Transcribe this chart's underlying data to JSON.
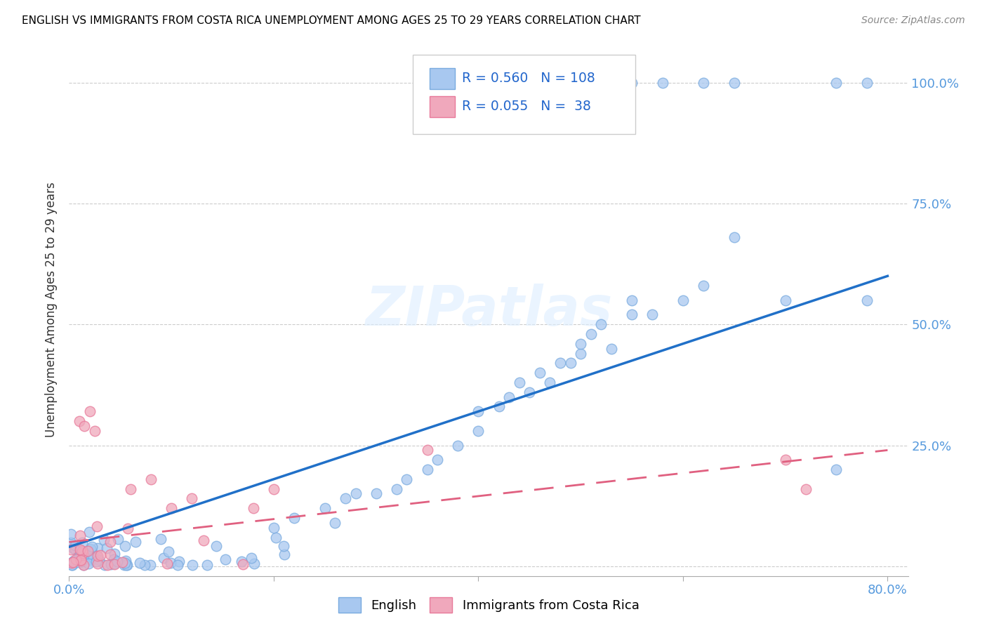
{
  "title": "ENGLISH VS IMMIGRANTS FROM COSTA RICA UNEMPLOYMENT AMONG AGES 25 TO 29 YEARS CORRELATION CHART",
  "source": "Source: ZipAtlas.com",
  "ylabel": "Unemployment Among Ages 25 to 29 years",
  "xlim": [
    0.0,
    0.82
  ],
  "ylim": [
    -0.02,
    1.08
  ],
  "x_ticks": [
    0.0,
    0.2,
    0.4,
    0.6,
    0.8
  ],
  "x_tick_labels": [
    "0.0%",
    "",
    "",
    "",
    "80.0%"
  ],
  "y_ticks": [
    0.0,
    0.25,
    0.5,
    0.75,
    1.0
  ],
  "y_tick_labels_right": [
    "",
    "25.0%",
    "50.0%",
    "75.0%",
    "100.0%"
  ],
  "english_color": "#a8c8f0",
  "immigrants_color": "#f0a8bc",
  "english_edge_color": "#7aabdf",
  "immigrants_edge_color": "#e87a9a",
  "english_line_color": "#2070c8",
  "immigrants_line_color": "#e06080",
  "legend1_R": "0.560",
  "legend1_N": "108",
  "legend2_R": "0.055",
  "legend2_N": " 38",
  "watermark": "ZIPatlas",
  "english_line_x0": 0.0,
  "english_line_y0": 0.04,
  "english_line_x1": 0.8,
  "english_line_y1": 0.6,
  "immigrants_line_x0": 0.0,
  "immigrants_line_y0": 0.05,
  "immigrants_line_x1": 0.8,
  "immigrants_line_y1": 0.24,
  "grid_color": "#cccccc",
  "grid_linestyle": "--",
  "title_fontsize": 11,
  "tick_fontsize": 13,
  "ylabel_fontsize": 12
}
